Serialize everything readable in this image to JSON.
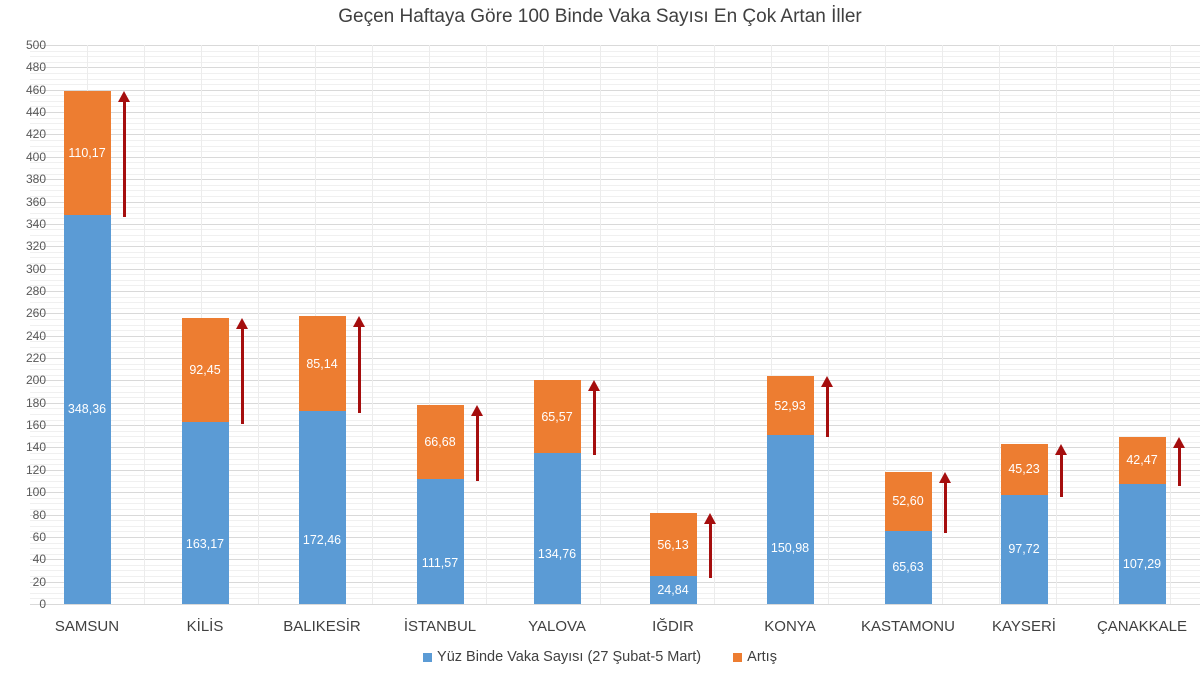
{
  "chart_data": {
    "type": "bar",
    "stacked": true,
    "title": "Geçen Haftaya Göre 100 Binde Vaka Sayısı En Çok Artan İller",
    "xlabel": "",
    "ylabel": "",
    "ylim": [
      0,
      500
    ],
    "ytick_step": 20,
    "grid": true,
    "legend_position": "bottom",
    "categories": [
      "SAMSUN",
      "KİLİS",
      "BALIKESİR",
      "İSTANBUL",
      "YALOVA",
      "IĞDIR",
      "KONYA",
      "KASTAMONU",
      "KAYSERİ",
      "ÇANAKKALE"
    ],
    "series": [
      {
        "name": "Yüz Binde Vaka Sayısı (27 Şubat-5 Mart)",
        "color": "#5b9bd5",
        "values": [
          348.36,
          163.17,
          172.46,
          111.57,
          134.76,
          24.84,
          150.98,
          65.63,
          97.72,
          107.29
        ],
        "labels": [
          "348,36",
          "163,17",
          "172,46",
          "111,57",
          "134,76",
          "24,84",
          "150,98",
          "65,63",
          "97,72",
          "107,29"
        ]
      },
      {
        "name": "Artış",
        "color": "#ed7d31",
        "values": [
          110.17,
          92.45,
          85.14,
          66.68,
          65.57,
          56.13,
          52.93,
          52.6,
          45.23,
          42.47
        ],
        "labels": [
          "110,17",
          "92,45",
          "85,14",
          "66,68",
          "65,57",
          "56,13",
          "52,93",
          "52,60",
          "45,23",
          "42,47"
        ]
      }
    ],
    "annotations": "Red upward arrow beside each bar indicating increase",
    "arrow_color": "#a50e0e"
  },
  "title": "Geçen Haftaya Göre 100 Binde Vaka Sayısı En Çok Artan İller",
  "legend": {
    "base": "Yüz Binde Vaka Sayısı (27 Şubat-5 Mart)",
    "inc": "Artış"
  }
}
